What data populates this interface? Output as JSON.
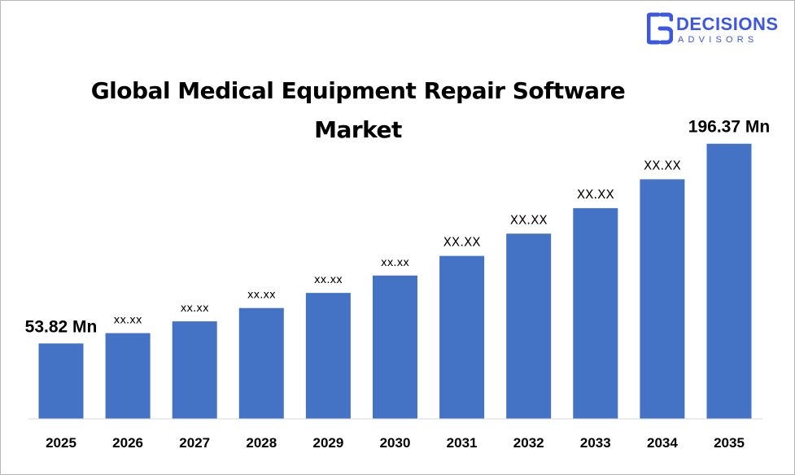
{
  "brand": {
    "name": "DECISIONS",
    "tagline": "ADVISORS",
    "color": "#3c57e0"
  },
  "chart_data": {
    "type": "bar",
    "title": "Global Medical Equipment Repair Software Market",
    "xlabel": "",
    "ylabel": "",
    "categories": [
      "2025",
      "2026",
      "2027",
      "2028",
      "2029",
      "2030",
      "2031",
      "2032",
      "2033",
      "2034",
      "2035"
    ],
    "values": [
      53.82,
      61.2,
      69.6,
      79.1,
      89.9,
      102.3,
      116.3,
      132.2,
      150.4,
      171.0,
      196.37
    ],
    "data_labels": [
      "53.82 Mn",
      "xx.xx",
      "xx.xx",
      "xx.xx",
      "xx.xx",
      "xx.xx",
      "XX.XX",
      "XX.XX",
      "XX.XX",
      "XX.XX",
      "196.37 Mn"
    ],
    "ylim": [
      0,
      220
    ],
    "bar_color": "#4472c4",
    "grid": false,
    "legend": "none"
  }
}
